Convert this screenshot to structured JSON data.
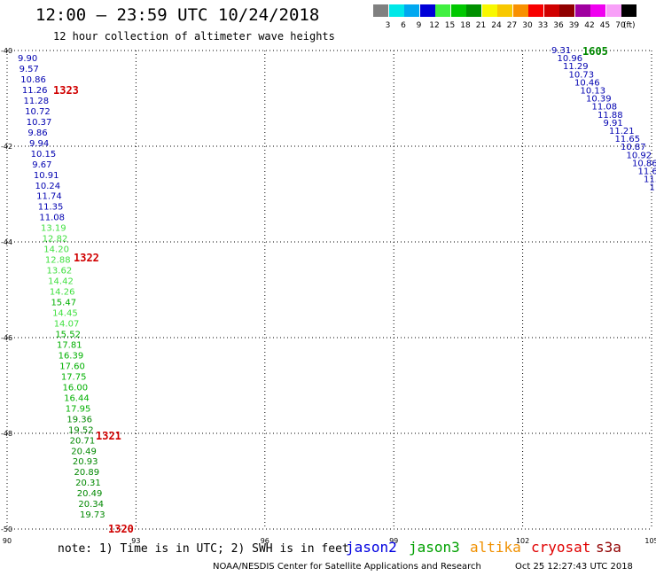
{
  "header": {
    "title": "12:00 – 23:59 UTC 10/24/2018",
    "subtitle": "12 hour collection of altimeter wave heights"
  },
  "colorbar": {
    "bins": [
      {
        "color": "#808080",
        "label": "3"
      },
      {
        "color": "#00e8e8",
        "label": "6"
      },
      {
        "color": "#00a8f0",
        "label": "9"
      },
      {
        "color": "#0000d8",
        "label": "12"
      },
      {
        "color": "#40f040",
        "label": "15"
      },
      {
        "color": "#00c800",
        "label": "18"
      },
      {
        "color": "#009000",
        "label": "21"
      },
      {
        "color": "#f8f800",
        "label": "24"
      },
      {
        "color": "#f8c800",
        "label": "27"
      },
      {
        "color": "#f89000",
        "label": "30"
      },
      {
        "color": "#f80000",
        "label": "33"
      },
      {
        "color": "#d00000",
        "label": "36"
      },
      {
        "color": "#900000",
        "label": "39"
      },
      {
        "color": "#a000a0",
        "label": "42"
      },
      {
        "color": "#f000f0",
        "label": "45"
      },
      {
        "color": "#f8a0f8",
        "label": "70"
      },
      {
        "color": "#000000",
        "label": ""
      }
    ],
    "unit": "(ft)"
  },
  "map": {
    "lat_range": [
      -50,
      -40
    ],
    "lon_range": [
      90,
      105
    ],
    "lat_ticks": [
      "-40",
      "-42",
      "-44",
      "-46",
      "-48",
      "-50"
    ],
    "lon_ticks": [
      "90",
      "93",
      "96",
      "99",
      "102",
      "105"
    ],
    "track_left": [
      {
        "v": "9.90",
        "c": "#0000b0"
      },
      {
        "v": "9.57",
        "c": "#0000b0"
      },
      {
        "v": "10.86",
        "c": "#0000b0"
      },
      {
        "v": "11.26",
        "c": "#0000b0"
      },
      {
        "v": "11.28",
        "c": "#0000b0"
      },
      {
        "v": "10.72",
        "c": "#0000b0"
      },
      {
        "v": "10.37",
        "c": "#0000b0"
      },
      {
        "v": "9.86",
        "c": "#0000b0"
      },
      {
        "v": "9.94",
        "c": "#0000b0"
      },
      {
        "v": "10.15",
        "c": "#0000b0"
      },
      {
        "v": "9.67",
        "c": "#0000b0"
      },
      {
        "v": "10.91",
        "c": "#0000b0"
      },
      {
        "v": "10.24",
        "c": "#0000b0"
      },
      {
        "v": "11.74",
        "c": "#0000b0"
      },
      {
        "v": "11.35",
        "c": "#0000b0"
      },
      {
        "v": "11.08",
        "c": "#0000b0"
      },
      {
        "v": "13.19",
        "c": "#40e040"
      },
      {
        "v": "12.82",
        "c": "#40e040"
      },
      {
        "v": "14.20",
        "c": "#40e040"
      },
      {
        "v": "12.88",
        "c": "#40e040"
      },
      {
        "v": "13.62",
        "c": "#40e040"
      },
      {
        "v": "14.42",
        "c": "#40e040"
      },
      {
        "v": "14.26",
        "c": "#40e040"
      },
      {
        "v": "15.47",
        "c": "#00b000"
      },
      {
        "v": "14.45",
        "c": "#40e040"
      },
      {
        "v": "14.07",
        "c": "#40e040"
      },
      {
        "v": "15.52",
        "c": "#00b000"
      },
      {
        "v": "17.81",
        "c": "#00b000"
      },
      {
        "v": "16.39",
        "c": "#00b000"
      },
      {
        "v": "17.60",
        "c": "#00b000"
      },
      {
        "v": "17.75",
        "c": "#00b000"
      },
      {
        "v": "16.00",
        "c": "#00b000"
      },
      {
        "v": "16.44",
        "c": "#00b000"
      },
      {
        "v": "17.95",
        "c": "#00b000"
      },
      {
        "v": "19.36",
        "c": "#008800"
      },
      {
        "v": "19.52",
        "c": "#008800"
      },
      {
        "v": "20.71",
        "c": "#008800"
      },
      {
        "v": "20.49",
        "c": "#008800"
      },
      {
        "v": "20.93",
        "c": "#008800"
      },
      {
        "v": "20.89",
        "c": "#008800"
      },
      {
        "v": "20.31",
        "c": "#008800"
      },
      {
        "v": "20.49",
        "c": "#008800"
      },
      {
        "v": "20.34",
        "c": "#008800"
      },
      {
        "v": "19.73",
        "c": "#008800"
      }
    ],
    "track_right": [
      {
        "v": "9.31",
        "c": "#0000b0"
      },
      {
        "v": "10.96",
        "c": "#0000b0"
      },
      {
        "v": "11.29",
        "c": "#0000b0"
      },
      {
        "v": "10.73",
        "c": "#0000b0"
      },
      {
        "v": "10.46",
        "c": "#0000b0"
      },
      {
        "v": "10.13",
        "c": "#0000b0"
      },
      {
        "v": "10.39",
        "c": "#0000b0"
      },
      {
        "v": "11.08",
        "c": "#0000b0"
      },
      {
        "v": "11.88",
        "c": "#0000b0"
      },
      {
        "v": "9.91",
        "c": "#0000b0"
      },
      {
        "v": "11.21",
        "c": "#0000b0"
      },
      {
        "v": "11.65",
        "c": "#0000b0"
      },
      {
        "v": "10.87",
        "c": "#0000b0"
      },
      {
        "v": "10.92",
        "c": "#0000b0"
      },
      {
        "v": "10.86",
        "c": "#0000b0"
      },
      {
        "v": "11.6",
        "c": "#0000b0"
      },
      {
        "v": "11.",
        "c": "#0000b0"
      },
      {
        "v": "1",
        "c": "#0000b0"
      }
    ],
    "time_labels": [
      {
        "t": "1323",
        "c": "#d00000"
      },
      {
        "t": "1322",
        "c": "#d00000"
      },
      {
        "t": "1321",
        "c": "#d00000"
      },
      {
        "t": "1320",
        "c": "#d00000"
      },
      {
        "t": "1605",
        "c": "#008800"
      }
    ]
  },
  "notes": {
    "note": "note: 1) Time is in UTC; 2) SWH is in feet"
  },
  "legend": [
    {
      "name": "jason2",
      "color": "#0000e0"
    },
    {
      "name": "jason3",
      "color": "#00a000"
    },
    {
      "name": "altika",
      "color": "#f09000"
    },
    {
      "name": "cryosat",
      "color": "#e00000"
    },
    {
      "name": "s3a",
      "color": "#900000"
    }
  ],
  "footer": {
    "credit": "NOAA/NESDIS Center for Satellite Applications and Research",
    "timestamp": "Oct 25 12:27:43 UTC 2018"
  }
}
